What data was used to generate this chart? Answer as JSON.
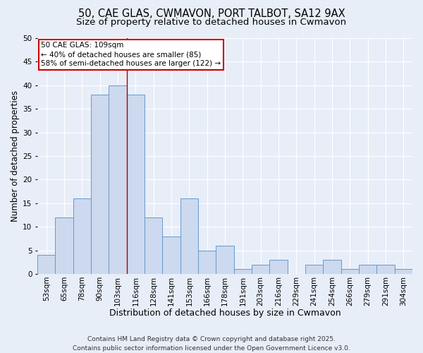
{
  "title": "50, CAE GLAS, CWMAVON, PORT TALBOT, SA12 9AX",
  "subtitle": "Size of property relative to detached houses in Cwmavon",
  "xlabel": "Distribution of detached houses by size in Cwmavon",
  "ylabel": "Number of detached properties",
  "bar_color": "#ccd9ee",
  "bar_edgecolor": "#6699cc",
  "background_color": "#e8eef8",
  "plot_bg_color": "#e8eef8",
  "grid_color": "#ffffff",
  "categories": [
    "53sqm",
    "65sqm",
    "78sqm",
    "90sqm",
    "103sqm",
    "116sqm",
    "128sqm",
    "141sqm",
    "153sqm",
    "166sqm",
    "178sqm",
    "191sqm",
    "203sqm",
    "216sqm",
    "229sqm",
    "241sqm",
    "254sqm",
    "266sqm",
    "279sqm",
    "291sqm",
    "304sqm"
  ],
  "values": [
    4,
    12,
    16,
    38,
    40,
    38,
    12,
    8,
    16,
    5,
    6,
    1,
    2,
    3,
    0,
    2,
    3,
    1,
    2,
    2,
    1
  ],
  "ylim": [
    0,
    50
  ],
  "yticks": [
    0,
    5,
    10,
    15,
    20,
    25,
    30,
    35,
    40,
    45,
    50
  ],
  "vline_x": 4.5,
  "vline_color": "#aa0000",
  "annotation_title": "50 CAE GLAS: 109sqm",
  "annotation_line1": "← 40% of detached houses are smaller (85)",
  "annotation_line2": "58% of semi-detached houses are larger (122) →",
  "annotation_box_facecolor": "#ffffff",
  "annotation_box_edgecolor": "#cc0000",
  "footer1": "Contains HM Land Registry data © Crown copyright and database right 2025.",
  "footer2": "Contains public sector information licensed under the Open Government Licence v3.0.",
  "title_fontsize": 10.5,
  "subtitle_fontsize": 9.5,
  "xlabel_fontsize": 9,
  "ylabel_fontsize": 8.5,
  "tick_fontsize": 7.5,
  "annotation_fontsize": 7.5,
  "footer_fontsize": 6.5
}
